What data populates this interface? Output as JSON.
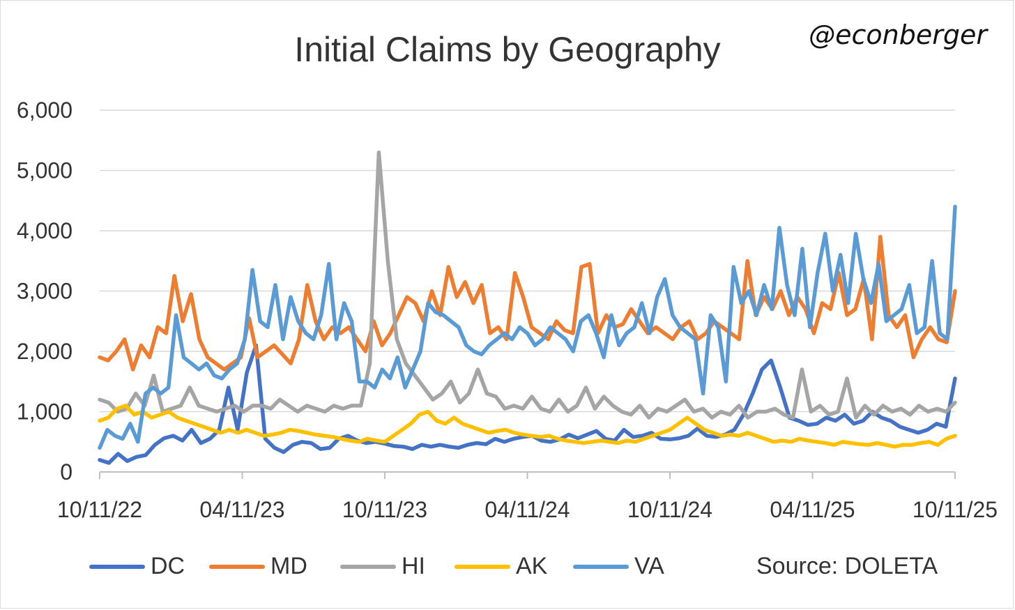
{
  "title": "Initial Claims by Geography",
  "handle": "@econberger",
  "source": "Source: DOLETA",
  "chart_data": {
    "type": "line",
    "title": "Initial Claims by Geography",
    "xlabel": "",
    "ylabel": "",
    "ylim": [
      0,
      6000
    ],
    "yticks": [
      "0",
      "1,000",
      "2,000",
      "3,000",
      "4,000",
      "5,000",
      "6,000"
    ],
    "xticks": [
      "10/11/22",
      "04/11/23",
      "10/11/23",
      "04/11/24",
      "10/11/24",
      "04/11/25",
      "10/11/25"
    ],
    "x_range": [
      "2022-10-11",
      "2025-10-11"
    ],
    "grid": true,
    "legend_position": "bottom",
    "series": [
      {
        "name": "DC",
        "color": "#4472C4",
        "values": [
          200,
          150,
          300,
          180,
          250,
          280,
          450,
          560,
          600,
          520,
          700,
          480,
          550,
          700,
          1400,
          700,
          1650,
          2100,
          550,
          400,
          330,
          450,
          500,
          480,
          380,
          400,
          550,
          600,
          520,
          480,
          500,
          470,
          430,
          420,
          380,
          450,
          420,
          450,
          420,
          400,
          450,
          480,
          460,
          550,
          500,
          550,
          580,
          600,
          520,
          500,
          540,
          620,
          560,
          620,
          680,
          550,
          520,
          700,
          580,
          600,
          650,
          550,
          540,
          560,
          600,
          720,
          600,
          580,
          620,
          700,
          950,
          1300,
          1700,
          1850,
          1400,
          900,
          850,
          780,
          800,
          900,
          850,
          950,
          800,
          850,
          1000,
          900,
          850,
          750,
          700,
          650,
          700,
          800,
          750,
          1550
        ]
      },
      {
        "name": "MD",
        "color": "#ED7D31",
        "values": [
          1900,
          1850,
          2000,
          2200,
          1700,
          2100,
          1900,
          2400,
          2300,
          3250,
          2500,
          2950,
          2200,
          1900,
          1800,
          1700,
          1800,
          1900,
          2550,
          1900,
          2000,
          2100,
          1950,
          1800,
          2200,
          3100,
          2500,
          2200,
          2400,
          2300,
          2400,
          2200,
          2000,
          2500,
          2100,
          2300,
          2600,
          2900,
          2800,
          2500,
          3000,
          2600,
          3400,
          2900,
          3150,
          2800,
          3100,
          2300,
          2400,
          2200,
          3300,
          2900,
          2400,
          2300,
          2200,
          2500,
          2350,
          2300,
          3400,
          3450,
          2300,
          2600,
          2400,
          2450,
          2700,
          2500,
          2300,
          2400,
          2300,
          2200,
          2400,
          2500,
          2200,
          2300,
          2500,
          2400,
          2300,
          2200,
          3500,
          2600,
          2900,
          2700,
          3000,
          2600,
          2900,
          2700,
          2300,
          2800,
          2700,
          3300,
          2600,
          2700,
          3200,
          2200,
          3900,
          2600,
          2400,
          2600,
          1900,
          2200,
          2400,
          2200,
          2150,
          3000
        ]
      },
      {
        "name": "HI",
        "color": "#A5A5A5",
        "values": [
          1200,
          1150,
          1000,
          1050,
          1300,
          1100,
          1600,
          1000,
          1050,
          1100,
          1400,
          1100,
          1050,
          1000,
          1050,
          1100,
          1000,
          1100,
          1100,
          1050,
          1200,
          1100,
          1000,
          1100,
          1050,
          1000,
          1100,
          1050,
          1100,
          1100,
          1800,
          5300,
          3500,
          2200,
          1800,
          1600,
          1400,
          1200,
          1300,
          1500,
          1150,
          1300,
          1700,
          1300,
          1250,
          1050,
          1100,
          1050,
          1250,
          1050,
          1000,
          1200,
          1000,
          1100,
          1400,
          1050,
          1250,
          1100,
          1000,
          950,
          1100,
          900,
          1050,
          1000,
          1100,
          1200,
          1000,
          1050,
          900,
          1000,
          950,
          1100,
          900,
          1000,
          1000,
          1050,
          950,
          900,
          1700,
          1000,
          1100,
          950,
          1000,
          1550,
          900,
          1100,
          950,
          1100,
          1000,
          1050,
          950,
          1100,
          1000,
          1050,
          1000,
          1150
        ]
      },
      {
        "name": "AK",
        "color": "#FFC000",
        "values": [
          850,
          900,
          1050,
          1100,
          950,
          1000,
          900,
          950,
          1000,
          900,
          850,
          800,
          750,
          700,
          650,
          700,
          650,
          700,
          650,
          600,
          620,
          650,
          700,
          680,
          650,
          620,
          600,
          580,
          550,
          520,
          500,
          550,
          520,
          500,
          600,
          700,
          800,
          950,
          1000,
          850,
          800,
          900,
          800,
          750,
          700,
          650,
          680,
          700,
          650,
          620,
          600,
          580,
          600,
          550,
          520,
          500,
          480,
          500,
          520,
          500,
          480,
          520,
          500,
          550,
          600,
          650,
          700,
          800,
          900,
          800,
          700,
          650,
          600,
          620,
          600,
          650,
          600,
          550,
          500,
          520,
          500,
          550,
          520,
          500,
          480,
          450,
          500,
          480,
          460,
          450,
          480,
          450,
          420,
          450,
          450,
          480,
          500,
          450,
          550,
          600
        ]
      },
      {
        "name": "VA",
        "color": "#5B9BD5",
        "values": [
          400,
          700,
          600,
          550,
          800,
          500,
          1300,
          1400,
          1300,
          1400,
          2600,
          1900,
          1800,
          1700,
          1800,
          1600,
          1550,
          1700,
          1800,
          2200,
          3350,
          2500,
          2400,
          3100,
          2200,
          2900,
          2500,
          2300,
          2200,
          2600,
          3450,
          2200,
          2800,
          2500,
          1500,
          1500,
          1400,
          1700,
          1550,
          1900,
          1400,
          1700,
          2000,
          2800,
          2650,
          2600,
          2500,
          2400,
          2100,
          2000,
          1950,
          2100,
          2200,
          2300,
          2200,
          2400,
          2300,
          2100,
          2200,
          2400,
          2300,
          2200,
          2000,
          2500,
          2600,
          2300,
          1900,
          2600,
          2100,
          2300,
          2400,
          2800,
          2300,
          2900,
          3200,
          2600,
          2400,
          2300,
          2200,
          1300,
          2600,
          2400,
          1500,
          3400,
          2800,
          3000,
          2600,
          3100,
          2700,
          4050,
          3100,
          2600,
          3700,
          2400,
          3300,
          3950,
          3000,
          3600,
          2800,
          3950,
          3200,
          2800,
          3450,
          2500,
          2600,
          2700,
          3100,
          2300,
          2400,
          3500,
          2300,
          2200,
          4400
        ]
      }
    ]
  },
  "legend": [
    {
      "label": "DC",
      "color": "#4472C4"
    },
    {
      "label": "MD",
      "color": "#ED7D31"
    },
    {
      "label": "HI",
      "color": "#A5A5A5"
    },
    {
      "label": "AK",
      "color": "#FFC000"
    },
    {
      "label": "VA",
      "color": "#5B9BD5"
    }
  ]
}
